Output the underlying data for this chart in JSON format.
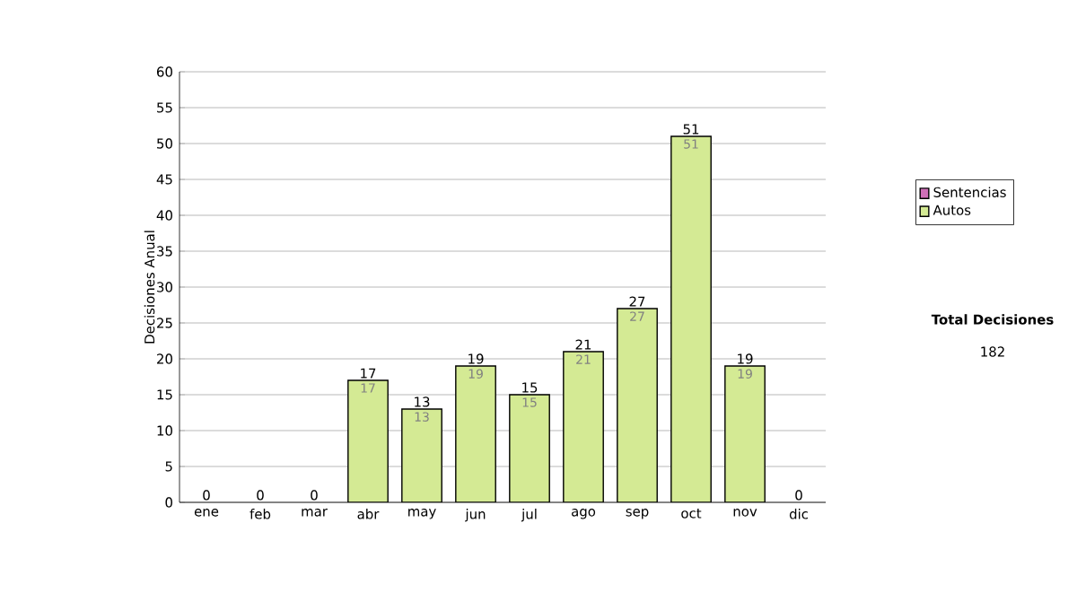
{
  "chart_data": {
    "type": "bar",
    "stacked": true,
    "ylabel": "Decisiones Anual",
    "categories": [
      "ene",
      "feb",
      "mar",
      "abr",
      "may",
      "jun",
      "jul",
      "ago",
      "sep",
      "oct",
      "nov",
      "dic"
    ],
    "series": [
      {
        "name": "Sentencias",
        "color": "#d070b8",
        "values": [
          0,
          0,
          0,
          0,
          0,
          0,
          0,
          0,
          0,
          0,
          0,
          0
        ]
      },
      {
        "name": "Autos",
        "color": "#d4ea94",
        "values": [
          0,
          0,
          0,
          17,
          13,
          19,
          15,
          21,
          27,
          51,
          19,
          0
        ],
        "value_labels": [
          null,
          null,
          null,
          "17",
          "13",
          "19",
          "15",
          "21",
          "27",
          "51",
          "19",
          null
        ]
      }
    ],
    "totals": [
      "0",
      "0",
      "0",
      "17",
      "13",
      "19",
      "15",
      "21",
      "27",
      "51",
      "19",
      "0"
    ],
    "ylim": [
      0,
      60
    ],
    "yticks": [
      0,
      5,
      10,
      15,
      20,
      25,
      30,
      35,
      40,
      45,
      50,
      55,
      60
    ],
    "grid": "y",
    "legend": "right",
    "annotations": [
      "Total Decisiones",
      "182"
    ]
  }
}
